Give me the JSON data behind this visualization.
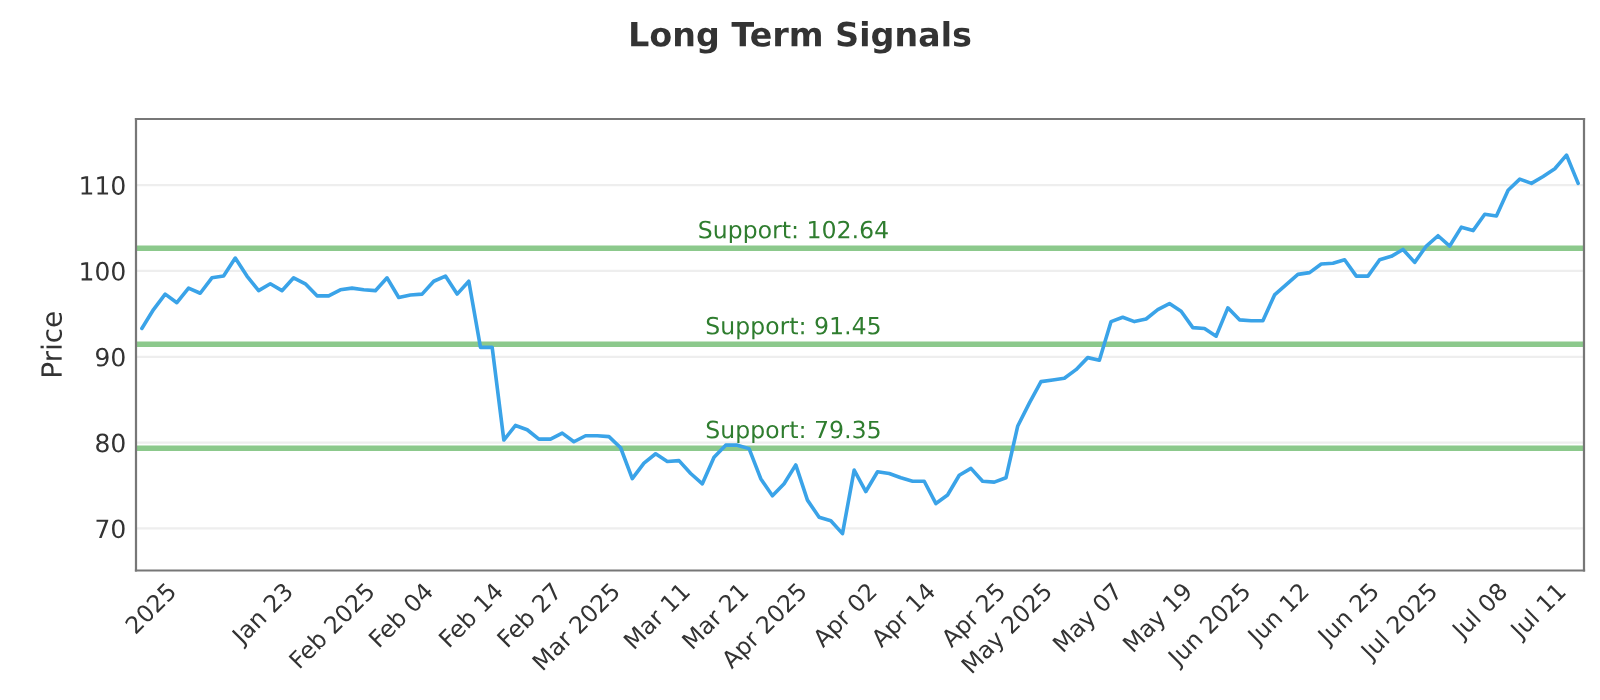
{
  "chart_data": {
    "type": "line",
    "title": "Long Term Signals",
    "ylabel": "Price",
    "categories": [
      null,
      null,
      "2025",
      null,
      null,
      null,
      null,
      null,
      null,
      null,
      null,
      null,
      "Jan 23",
      null,
      null,
      null,
      null,
      null,
      null,
      "Feb 2025",
      null,
      null,
      null,
      null,
      "Feb 04",
      null,
      null,
      null,
      null,
      null,
      "Feb 14",
      null,
      null,
      null,
      null,
      "Feb 27",
      null,
      null,
      null,
      null,
      "Mar 2025",
      null,
      null,
      null,
      null,
      null,
      "Mar 11",
      null,
      null,
      null,
      null,
      "Mar 21",
      null,
      null,
      null,
      null,
      "Apr 2025",
      null,
      null,
      null,
      null,
      null,
      "Apr 02",
      null,
      null,
      null,
      null,
      "Apr 14",
      null,
      null,
      null,
      null,
      null,
      "Apr 25",
      null,
      null,
      null,
      "May 2025",
      null,
      null,
      null,
      null,
      null,
      "May 07",
      null,
      null,
      null,
      null,
      null,
      "May 19",
      null,
      null,
      null,
      null,
      "Jun 2025",
      null,
      null,
      null,
      null,
      "Jun 12",
      null,
      null,
      null,
      null,
      null,
      "Jun 25",
      null,
      null,
      null,
      null,
      "Jul 2025",
      null,
      null,
      null,
      null,
      null,
      "Jul 08",
      null,
      null,
      null,
      null,
      "Jul 11",
      null,
      null
    ],
    "series": [
      {
        "color": "#3aa3e8",
        "values": [
          93.3,
          95.5,
          97.3,
          96.3,
          98.0,
          97.4,
          99.2,
          99.4,
          101.5,
          99.4,
          97.7,
          98.5,
          97.7,
          99.2,
          98.5,
          97.1,
          97.1,
          97.8,
          98.0,
          97.8,
          97.7,
          99.2,
          96.9,
          97.2,
          97.3,
          98.8,
          99.4,
          97.3,
          98.8,
          91.1,
          91.1,
          80.3,
          82.0,
          81.5,
          80.4,
          80.4,
          81.1,
          80.1,
          80.8,
          80.8,
          80.7,
          79.4,
          75.8,
          77.6,
          78.7,
          77.8,
          77.9,
          76.4,
          75.2,
          78.3,
          79.7,
          79.7,
          79.3,
          75.8,
          73.8,
          75.2,
          77.4,
          73.3,
          71.3,
          70.9,
          69.4,
          76.8,
          74.3,
          76.6,
          76.4,
          75.9,
          75.5,
          75.5,
          72.9,
          73.9,
          76.2,
          77.0,
          75.5,
          75.4,
          75.9,
          81.9,
          84.6,
          87.1,
          87.3,
          87.5,
          88.5,
          89.9,
          89.6,
          94.1,
          94.6,
          94.1,
          94.4,
          95.5,
          96.2,
          95.3,
          93.4,
          93.3,
          92.4,
          95.7,
          94.3,
          94.2,
          94.2,
          97.2,
          98.4,
          99.6,
          99.8,
          100.8,
          100.9,
          101.3,
          99.4,
          99.4,
          101.3,
          101.7,
          102.5,
          101.0,
          102.9,
          104.1,
          102.9,
          105.1,
          104.7,
          106.6,
          106.4,
          109.4,
          110.7,
          110.2,
          111.0,
          111.9,
          113.5,
          110.2
        ]
      }
    ],
    "ylim": [
      65.1,
      117.7
    ],
    "yticks": [
      70,
      80,
      90,
      100,
      110
    ],
    "grid": "y",
    "ref_lines": [
      {
        "axis": "y",
        "value": 102.64,
        "label": "Support: 102.64",
        "color": "#8cc98c"
      },
      {
        "axis": "y",
        "value": 91.45,
        "label": "Support: 91.45",
        "color": "#8cc98c"
      },
      {
        "axis": "y",
        "value": 79.35,
        "label": "Support: 79.35",
        "color": "#8cc98c"
      }
    ]
  }
}
